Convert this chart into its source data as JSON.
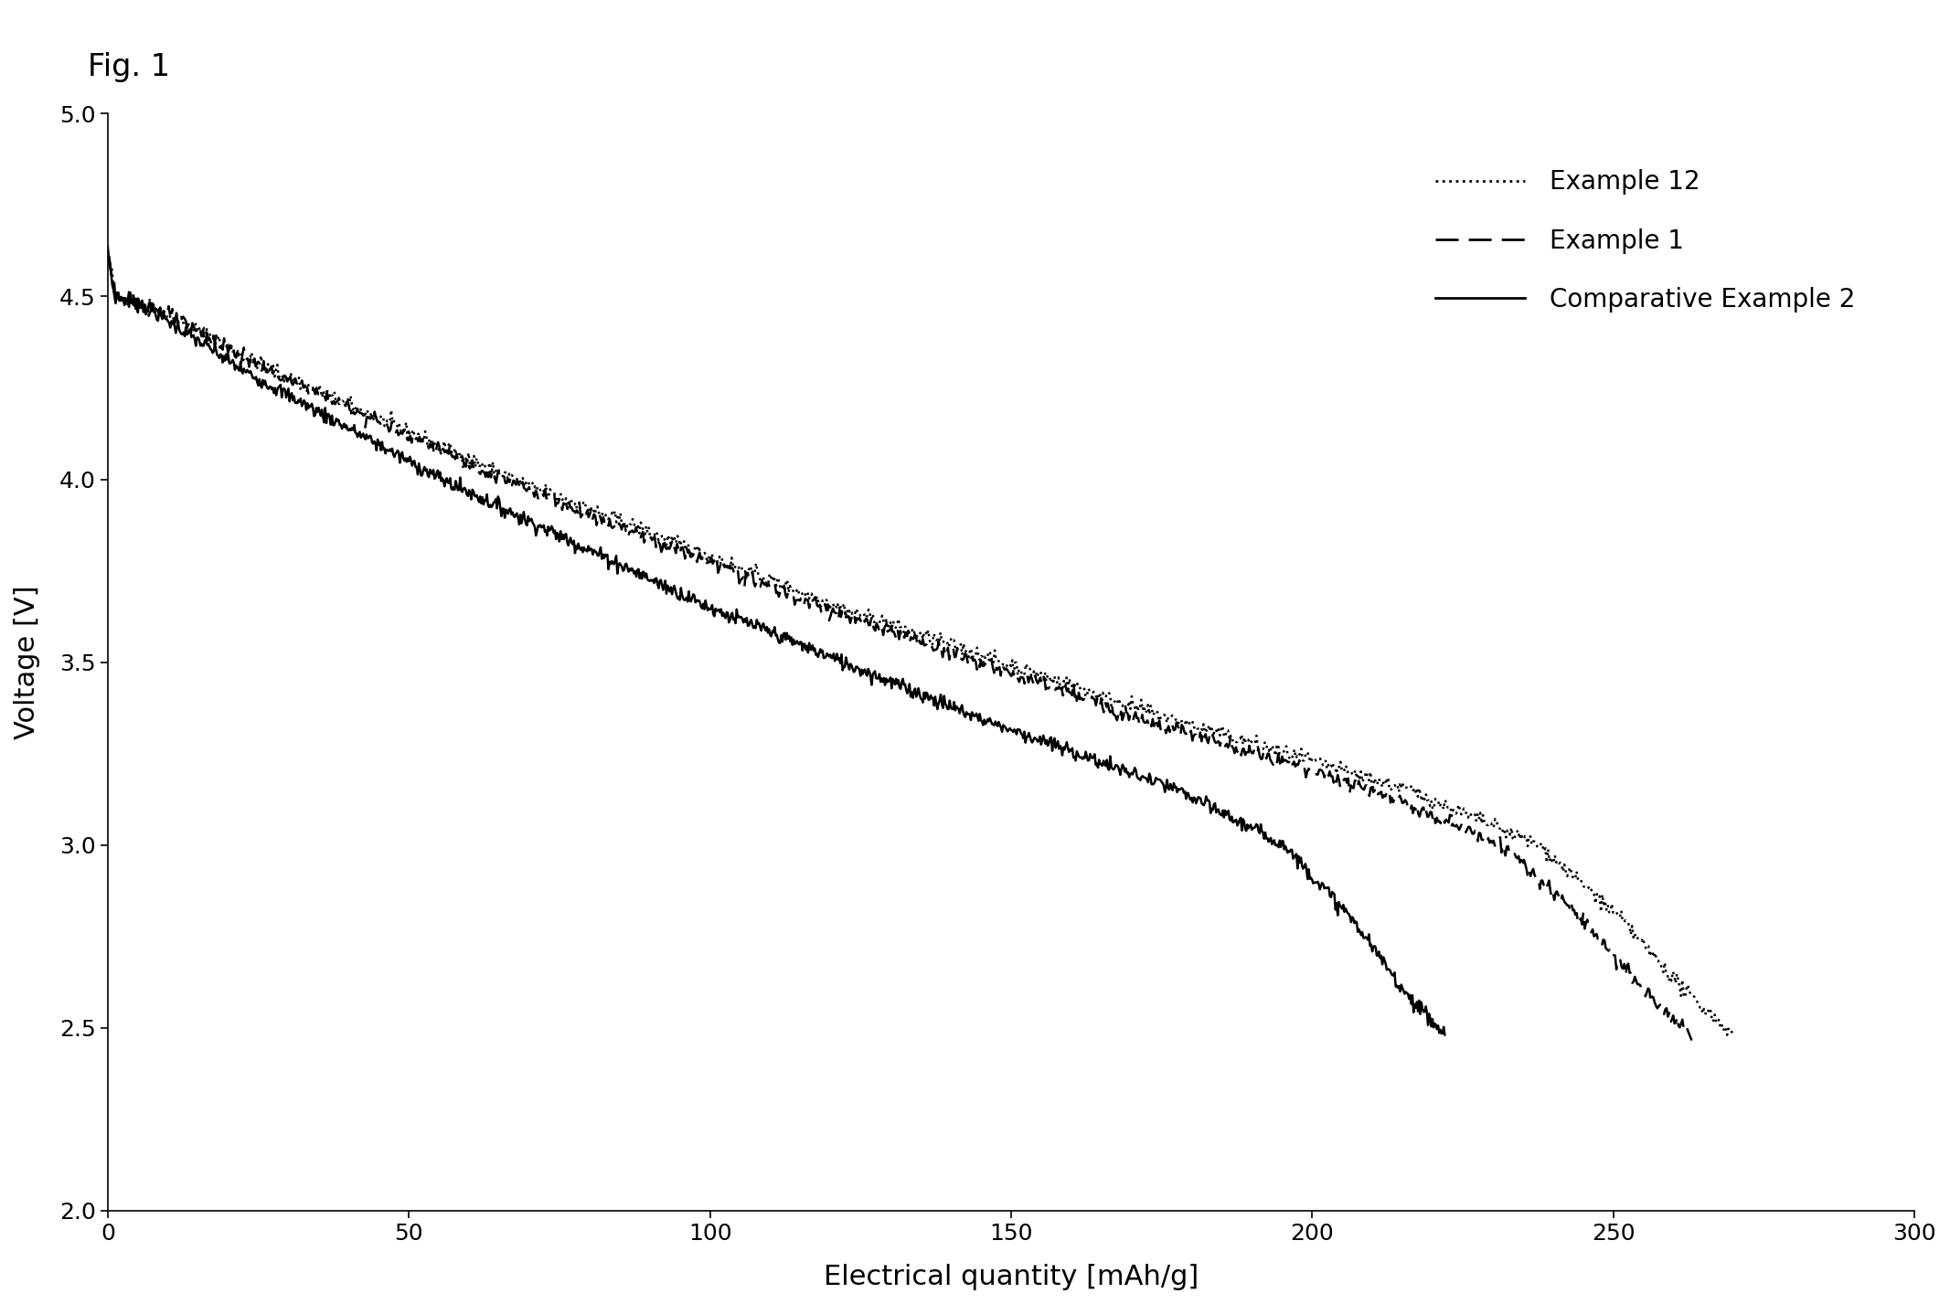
{
  "title": "Fig. 1",
  "xlabel": "Electrical quantity [mAh/g]",
  "ylabel": "Voltage [V]",
  "xlim": [
    0,
    300
  ],
  "ylim": [
    2,
    5
  ],
  "xticks": [
    0,
    50,
    100,
    150,
    200,
    250,
    300
  ],
  "yticks": [
    2,
    2.5,
    3,
    3.5,
    4,
    4.5,
    5
  ],
  "legend_labels": [
    "Example 12",
    "Example 1",
    "Comparative Example 2"
  ],
  "background_color": "#ffffff",
  "line_color": "#000000",
  "capacities": [
    270,
    263,
    222
  ],
  "seeds": [
    42,
    123,
    7
  ]
}
